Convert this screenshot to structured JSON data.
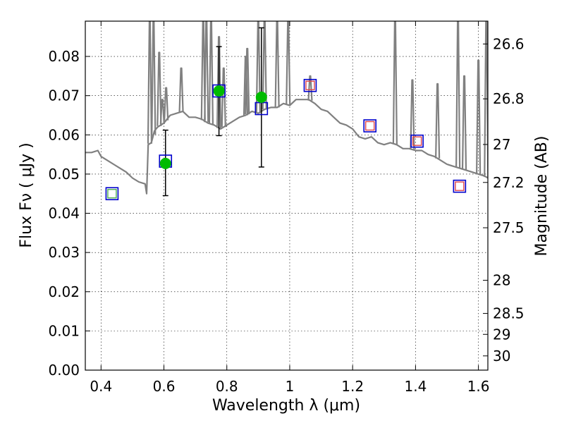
{
  "chart_data": {
    "type": "scatter",
    "xlabel": "Wavelength  λ (μm)",
    "ylabel": "Flux  Fν  ( μJy )",
    "y2label": "Magnitude (AB)",
    "xlim": [
      0.35,
      1.63
    ],
    "ylim": [
      0.0,
      0.089
    ],
    "grid": true,
    "x_ticks": [
      0.4,
      0.6,
      0.8,
      1.0,
      1.2,
      1.4,
      1.6
    ],
    "x_tick_labels": [
      "0.4",
      "0.6",
      "0.8",
      "1",
      "1.2",
      "1.4",
      "1.6"
    ],
    "y_ticks": [
      0.0,
      0.01,
      0.02,
      0.03,
      0.04,
      0.05,
      0.06,
      0.07,
      0.08
    ],
    "y_tick_labels": [
      "0.00",
      "0.01",
      "0.02",
      "0.03",
      "0.04",
      "0.05",
      "0.06",
      "0.07",
      "0.08"
    ],
    "mag_ticks": [
      "26.6",
      "26.8",
      "27",
      "27.2",
      "27.5",
      "28",
      "28.5",
      "29",
      "30"
    ],
    "colors": {
      "spectrum": "#808080",
      "observed": "#00bb00",
      "model_box": "#0000cc",
      "red_box": "#e0454a",
      "green_box": "#4caf50",
      "errorbar": "#000000"
    },
    "series": [
      {
        "kind": "spectrum",
        "x": [
          0.35,
          0.37,
          0.39,
          0.4,
          0.42,
          0.44,
          0.46,
          0.48,
          0.5,
          0.52,
          0.54,
          0.545,
          0.55,
          0.56,
          0.57,
          0.58,
          0.6,
          0.62,
          0.64,
          0.66,
          0.68,
          0.7,
          0.72,
          0.74,
          0.76,
          0.78,
          0.8,
          0.82,
          0.84,
          0.86,
          0.88,
          0.9,
          0.92,
          0.94,
          0.96,
          0.98,
          1.0,
          1.02,
          1.04,
          1.06,
          1.08,
          1.1,
          1.12,
          1.14,
          1.16,
          1.18,
          1.2,
          1.22,
          1.24,
          1.26,
          1.28,
          1.3,
          1.32,
          1.34,
          1.36,
          1.38,
          1.4,
          1.42,
          1.44,
          1.46,
          1.48,
          1.5,
          1.52,
          1.54,
          1.56,
          1.58,
          1.6,
          1.62,
          1.63
        ],
        "y": [
          0.0555,
          0.0555,
          0.056,
          0.0545,
          0.0535,
          0.0525,
          0.0515,
          0.0505,
          0.049,
          0.048,
          0.0475,
          0.045,
          0.0575,
          0.058,
          0.061,
          0.062,
          0.063,
          0.065,
          0.0655,
          0.066,
          0.0645,
          0.0645,
          0.064,
          0.063,
          0.0625,
          0.0615,
          0.0625,
          0.0635,
          0.0645,
          0.065,
          0.066,
          0.0655,
          0.0665,
          0.067,
          0.067,
          0.068,
          0.0675,
          0.069,
          0.069,
          0.069,
          0.068,
          0.0665,
          0.066,
          0.0645,
          0.063,
          0.0625,
          0.0615,
          0.0595,
          0.059,
          0.0595,
          0.058,
          0.0575,
          0.058,
          0.0575,
          0.0565,
          0.0565,
          0.056,
          0.056,
          0.055,
          0.0545,
          0.0535,
          0.0525,
          0.052,
          0.0515,
          0.051,
          0.0505,
          0.05,
          0.0495,
          0.049
        ]
      },
      {
        "kind": "spectrum-emission-lines",
        "x": [
          0.555,
          0.567,
          0.585,
          0.595,
          0.607,
          0.655,
          0.725,
          0.735,
          0.75,
          0.775,
          0.79,
          0.86,
          0.865,
          0.9,
          0.92,
          0.96,
          0.995,
          1.065,
          1.335,
          1.39,
          1.47,
          1.535,
          1.555,
          1.6,
          1.625
        ],
        "y": [
          0.089,
          0.089,
          0.081,
          0.069,
          0.072,
          0.077,
          0.089,
          0.089,
          0.089,
          0.085,
          0.077,
          0.08,
          0.082,
          0.089,
          0.089,
          0.089,
          0.089,
          0.075,
          0.089,
          0.074,
          0.073,
          0.089,
          0.075,
          0.079,
          0.089
        ]
      },
      {
        "kind": "observed",
        "x": [
          0.605,
          0.775,
          0.91
        ],
        "y": [
          0.0527,
          0.0712,
          0.0696
        ],
        "err_low": [
          0.0445,
          0.0598,
          0.0518
        ],
        "err_high": [
          0.0612,
          0.0825,
          0.0873
        ]
      },
      {
        "kind": "model-blue-squares",
        "x": [
          0.435,
          0.605,
          0.775,
          0.91,
          1.065,
          1.255,
          1.405,
          1.54
        ],
        "y": [
          0.045,
          0.0533,
          0.0712,
          0.0667,
          0.0726,
          0.0623,
          0.0584,
          0.0469
        ]
      },
      {
        "kind": "model-red-squares",
        "x": [
          1.065,
          1.255,
          1.405,
          1.54
        ],
        "y": [
          0.0726,
          0.0623,
          0.0584,
          0.0469
        ]
      },
      {
        "kind": "model-green-squares",
        "x": [
          0.435
        ],
        "y": [
          0.045
        ]
      }
    ]
  }
}
